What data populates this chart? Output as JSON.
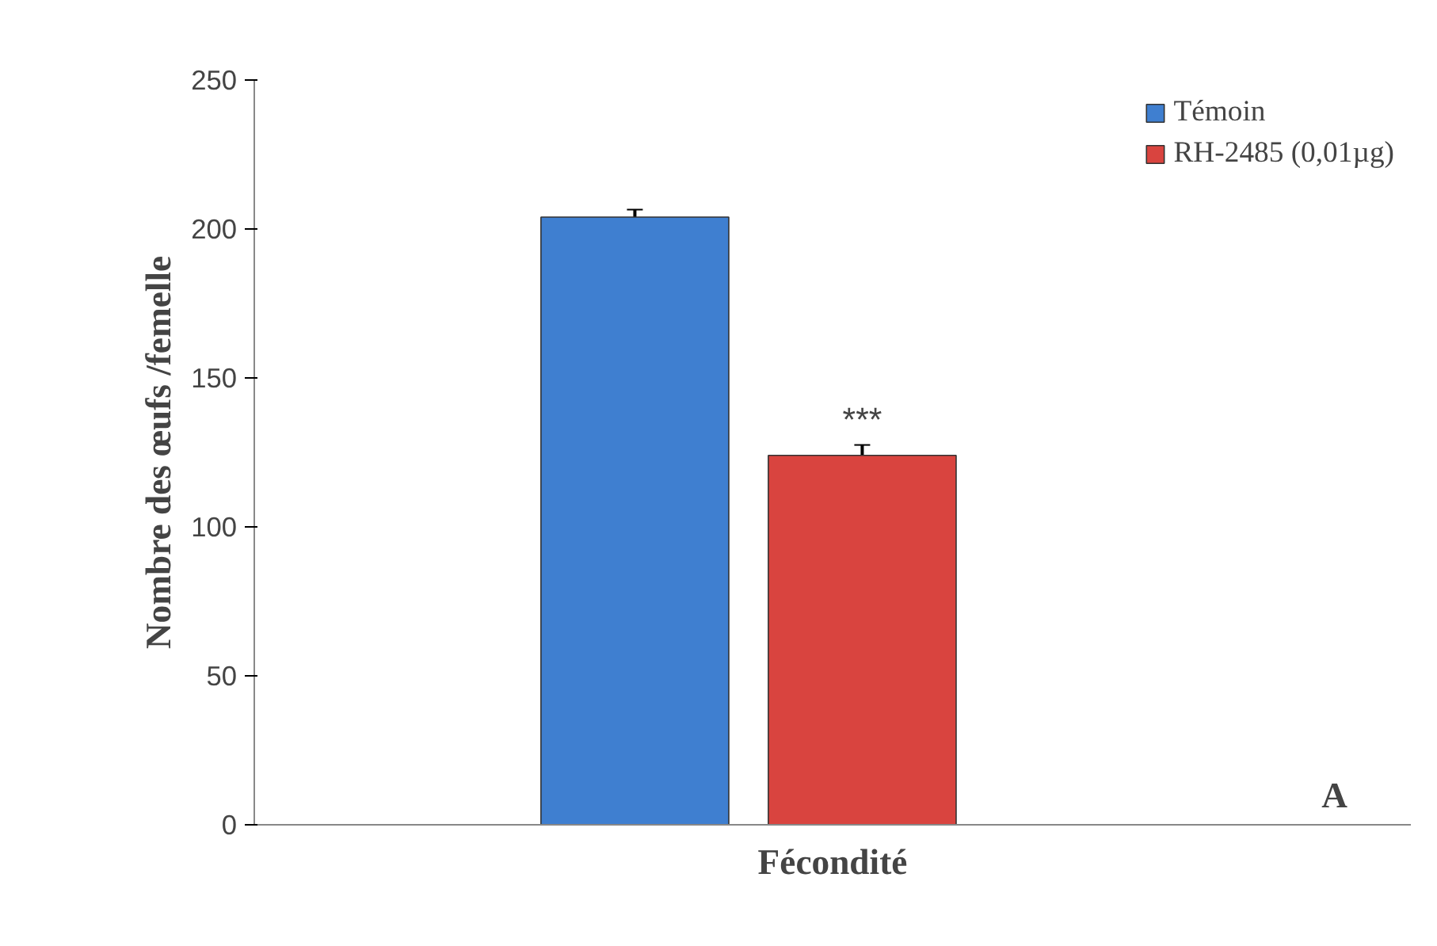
{
  "chart_data": {
    "type": "bar",
    "xlabel": "Fécondité",
    "ylabel": "Nombre des œufs /femelle",
    "categories": [
      null
    ],
    "series": [
      {
        "name": "Témoin",
        "color": "#3f7fd0",
        "values": [
          204
        ],
        "errors": [
          2.5
        ]
      },
      {
        "name": "RH-2485 (0,01µg)",
        "color": "#d9443f",
        "values": [
          124
        ],
        "errors": [
          3.5
        ]
      }
    ],
    "ylim": [
      0,
      250
    ],
    "yticks": [
      0,
      50,
      100,
      150,
      200,
      250
    ],
    "grid": false,
    "legend": "top right",
    "annotations": [
      "***",
      "A"
    ]
  }
}
